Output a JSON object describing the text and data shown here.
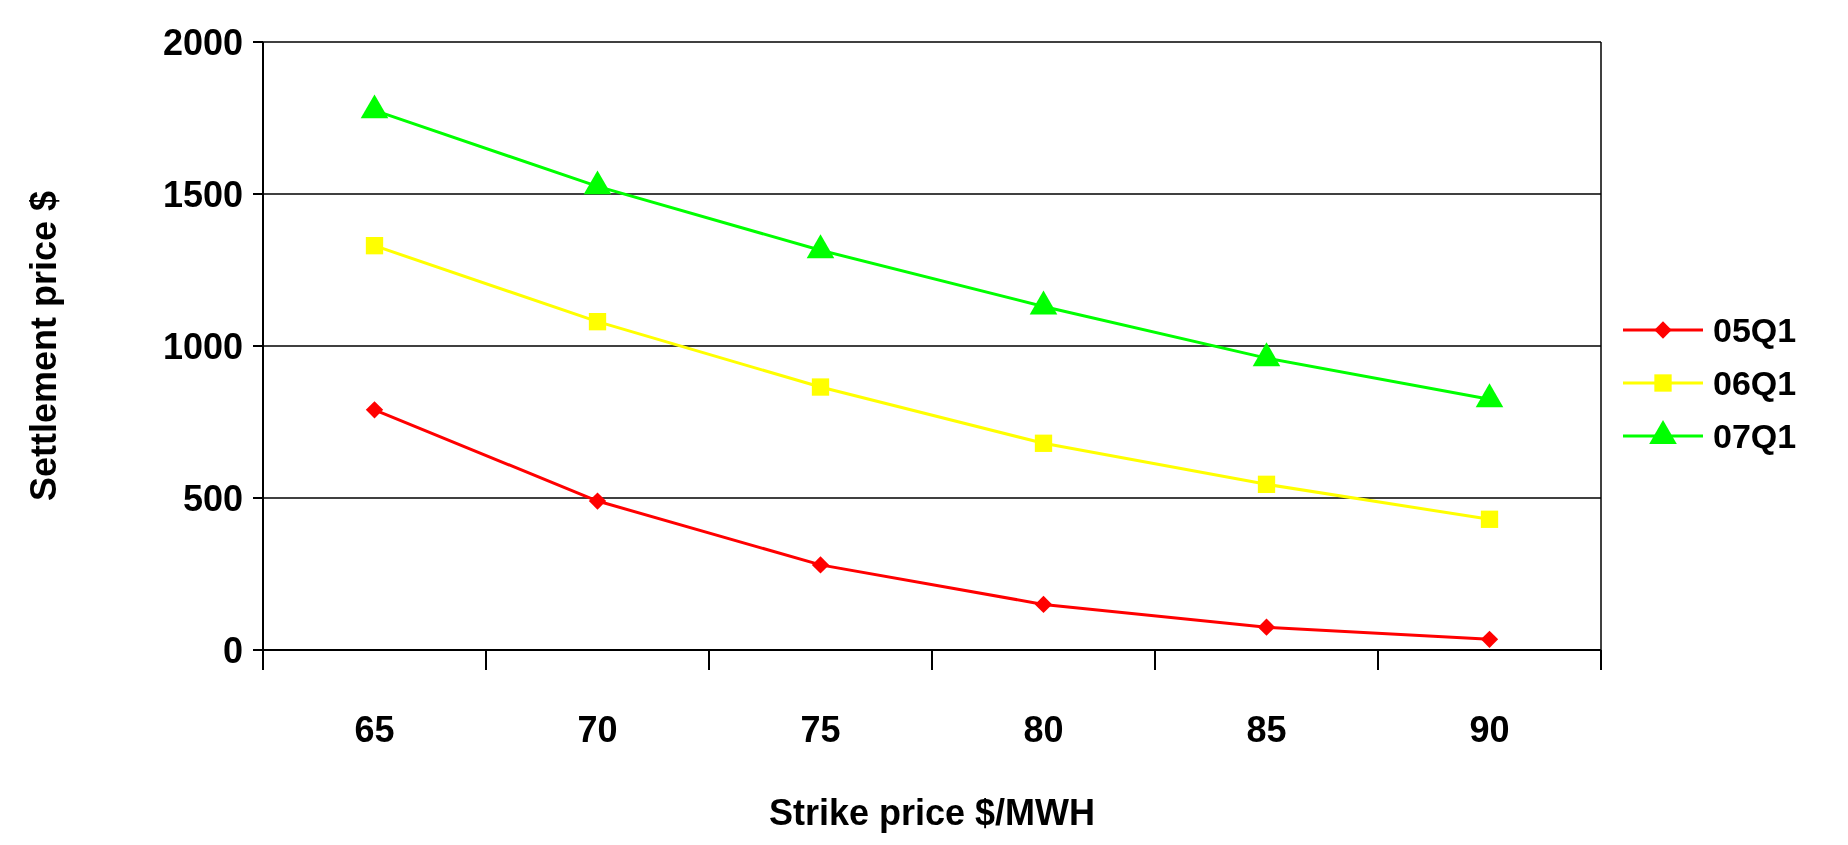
{
  "chart_data": {
    "type": "line",
    "xlabel": "Strike price $/MWH",
    "ylabel": "Settlement price $",
    "categories": [
      "65",
      "70",
      "75",
      "80",
      "85",
      "90"
    ],
    "ylim": [
      0,
      2000
    ],
    "yticks": [
      0,
      500,
      1000,
      1500,
      2000
    ],
    "grid": "y",
    "legend": "right",
    "series": [
      {
        "name": "05Q1",
        "color": "#ff0000",
        "marker": "diamond",
        "values": [
          790,
          490,
          280,
          150,
          75,
          35
        ]
      },
      {
        "name": "06Q1",
        "color": "#ffff00",
        "marker": "square",
        "values": [
          1330,
          1080,
          865,
          680,
          545,
          430
        ]
      },
      {
        "name": "07Q1",
        "color": "#00ff00",
        "marker": "triangle",
        "values": [
          1775,
          1525,
          1315,
          1130,
          960,
          825
        ]
      }
    ]
  }
}
